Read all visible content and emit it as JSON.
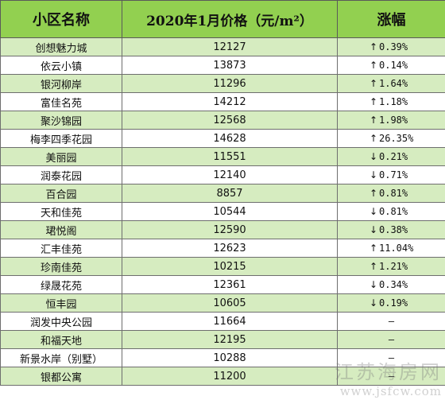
{
  "header": {
    "name": "小区名称",
    "price": "2020年1月价格（元/m²）",
    "change": "涨幅"
  },
  "rows": [
    {
      "name": "创想魅力城",
      "price": "12127",
      "dir": "up",
      "change": "0.39%"
    },
    {
      "name": "依云小镇",
      "price": "13873",
      "dir": "up",
      "change": "0.14%"
    },
    {
      "name": "银河柳岸",
      "price": "11296",
      "dir": "up",
      "change": "1.64%"
    },
    {
      "name": "富佳名苑",
      "price": "14212",
      "dir": "up",
      "change": "1.18%"
    },
    {
      "name": "聚沙锦园",
      "price": "12568",
      "dir": "up",
      "change": "1.98%"
    },
    {
      "name": "梅李四季花园",
      "price": "14628",
      "dir": "up",
      "change": "26.35%"
    },
    {
      "name": "美丽园",
      "price": "11551",
      "dir": "down",
      "change": "0.21%"
    },
    {
      "name": "润泰花园",
      "price": "12140",
      "dir": "down",
      "change": "0.71%"
    },
    {
      "name": "百合园",
      "price": "8857",
      "dir": "up",
      "change": "0.81%"
    },
    {
      "name": "天和佳苑",
      "price": "10544",
      "dir": "down",
      "change": "0.81%"
    },
    {
      "name": "珺悦阁",
      "price": "12590",
      "dir": "down",
      "change": "0.38%"
    },
    {
      "name": "汇丰佳苑",
      "price": "12623",
      "dir": "up",
      "change": "11.04%"
    },
    {
      "name": "珍南佳苑",
      "price": "10215",
      "dir": "up",
      "change": "1.21%"
    },
    {
      "name": "绿晟花苑",
      "price": "12361",
      "dir": "down",
      "change": "0.34%"
    },
    {
      "name": "恒丰园",
      "price": "10605",
      "dir": "down",
      "change": "0.19%"
    },
    {
      "name": "润发中央公园",
      "price": "11664",
      "dir": "none",
      "change": "—"
    },
    {
      "name": "和福天地",
      "price": "12195",
      "dir": "none",
      "change": "—"
    },
    {
      "name": "新景水岸（别墅）",
      "price": "10288",
      "dir": "none",
      "change": "—"
    },
    {
      "name": "银都公寓",
      "price": "11200",
      "dir": "none",
      "change": "—"
    }
  ],
  "arrows": {
    "up": "↑",
    "down": "↓"
  },
  "watermark": {
    "line1": "江苏海房网",
    "line2": "www.jsfcw.com"
  },
  "colors": {
    "header_bg": "#92d050",
    "stripe_bg": "#d6ecc0"
  }
}
